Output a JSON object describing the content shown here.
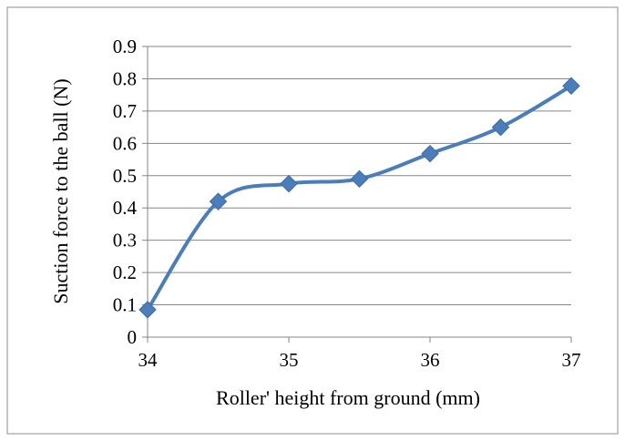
{
  "chart_data": {
    "type": "line",
    "title": "",
    "xlabel": "Roller' height from ground (mm)",
    "ylabel": "Suction force to the ball (N)",
    "x_ticks": [
      "34",
      "35",
      "36",
      "37"
    ],
    "x_tick_values": [
      34,
      35,
      36,
      37
    ],
    "y_ticks": [
      "0",
      "0.1",
      "0.2",
      "0.3",
      "0.4",
      "0.5",
      "0.6",
      "0.7",
      "0.8",
      "0.9"
    ],
    "y_tick_values": [
      0,
      0.1,
      0.2,
      0.3,
      0.4,
      0.5,
      0.6,
      0.7,
      0.8,
      0.9
    ],
    "xlim": [
      34,
      37
    ],
    "ylim": [
      0,
      0.9
    ],
    "grid": "horizontal",
    "legend": "none",
    "marker": "diamond",
    "smooth": true,
    "series_color": "#4a7ebb",
    "series": [
      {
        "x": [
          34,
          34.5,
          35,
          35.5,
          36,
          36.5,
          37
        ],
        "y": [
          0.085,
          0.42,
          0.475,
          0.49,
          0.568,
          0.65,
          0.778
        ]
      }
    ]
  }
}
